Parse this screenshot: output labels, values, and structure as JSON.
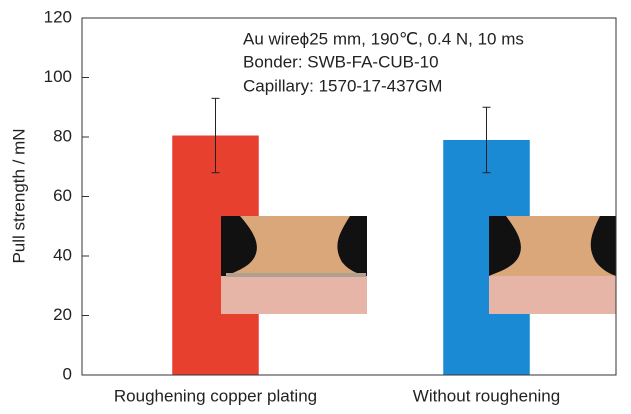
{
  "chart_data": {
    "type": "bar",
    "y_label": "Pull strength / mN",
    "annotations": [
      "Au wireϕ25 mm, 190℃, 0.4 N, 10 ms",
      "Bonder: SWB-FA-CUB-10",
      "Capillary: 1570-17-437GM"
    ],
    "categories": [
      "Roughening copper plating",
      "Without roughening"
    ],
    "values": [
      80.5,
      79
    ],
    "errors": [
      12.5,
      11
    ],
    "colors": [
      "#e8402f",
      "#1a8ad4"
    ],
    "ylim": [
      0,
      120
    ],
    "yticks": [
      0,
      20,
      40,
      60,
      80,
      100,
      120
    ]
  }
}
